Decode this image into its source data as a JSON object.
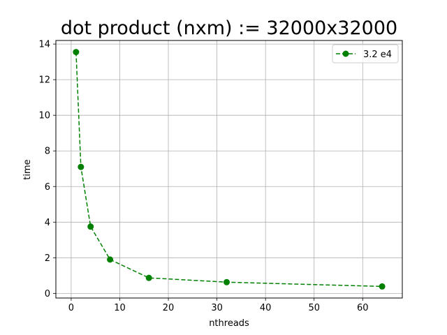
{
  "chart_data": {
    "type": "line",
    "title": "dot product (nxm) := 32000x32000",
    "xlabel": "nthreads",
    "ylabel": "time",
    "xlim": [
      -3.15,
      68.15
    ],
    "ylim": [
      -0.26,
      14.2
    ],
    "xticks": [
      0,
      10,
      20,
      30,
      40,
      50,
      60
    ],
    "yticks": [
      0,
      2,
      4,
      6,
      8,
      10,
      12,
      14
    ],
    "grid": true,
    "legend_position": "top-right",
    "series": [
      {
        "name": "3.2 e4",
        "color": "#008000",
        "linestyle": "dashed",
        "marker": "circle",
        "x": [
          1,
          2,
          4,
          8,
          16,
          32,
          64
        ],
        "y": [
          13.55,
          7.1,
          3.75,
          1.9,
          0.87,
          0.63,
          0.39
        ]
      }
    ]
  }
}
